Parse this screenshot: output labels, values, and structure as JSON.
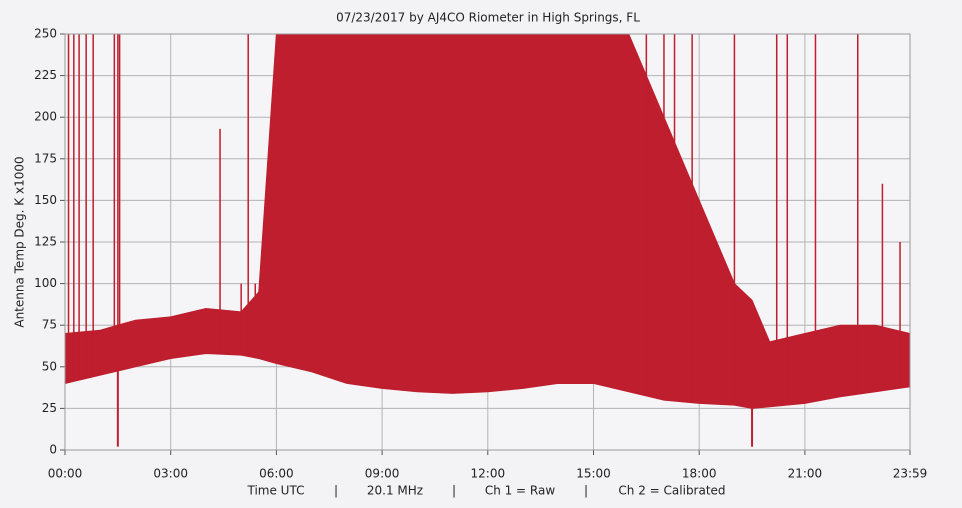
{
  "chart_data": {
    "type": "band",
    "title": "07/23/2017  by  AJ4CO Riometer  in  High Springs, FL",
    "y_label": "Antenna Temp Deg. K x1000",
    "footer": [
      "Time UTC",
      "|",
      "20.1 MHz",
      "|",
      "Ch 1 = Raw",
      "|",
      "Ch 2 = Calibrated"
    ],
    "color": "#be1e2d",
    "grid": true,
    "x": [
      0,
      1,
      2,
      3,
      4,
      5,
      5.5,
      6,
      7,
      8,
      9,
      10,
      11,
      12,
      13,
      14,
      15,
      16,
      17,
      18,
      19,
      19.5,
      20,
      21,
      22,
      23,
      23.98
    ],
    "low": [
      40,
      45,
      50,
      55,
      58,
      57,
      55,
      52,
      47,
      40,
      37,
      35,
      34,
      35,
      37,
      40,
      40,
      35,
      30,
      28,
      27,
      25,
      26,
      28,
      32,
      35,
      38
    ],
    "high": [
      70,
      72,
      78,
      80,
      85,
      83,
      95,
      250,
      250,
      250,
      250,
      250,
      250,
      250,
      250,
      250,
      250,
      250,
      200,
      150,
      100,
      90,
      65,
      70,
      75,
      75,
      70
    ],
    "spikes": {
      "x": [
        0.1,
        0.25,
        0.4,
        0.6,
        0.8,
        1.4,
        1.5,
        1.55,
        4.4,
        5.0,
        5.2,
        5.4,
        16.5,
        17.0,
        17.3,
        17.8,
        19.0,
        20.2,
        20.5,
        21.3,
        22.5,
        23.2,
        23.7
      ],
      "values": [
        250,
        250,
        250,
        250,
        250,
        250,
        250,
        250,
        193,
        100,
        250,
        100,
        250,
        250,
        250,
        250,
        250,
        250,
        250,
        250,
        250,
        160,
        125
      ]
    },
    "dips": {
      "x": [
        1.5,
        19.5
      ],
      "values": [
        2,
        2
      ]
    },
    "xlim": [
      0,
      23.983
    ],
    "xticks": [
      {
        "value": 0,
        "label": "00:00"
      },
      {
        "value": 3,
        "label": "03:00"
      },
      {
        "value": 6,
        "label": "06:00"
      },
      {
        "value": 9,
        "label": "09:00"
      },
      {
        "value": 12,
        "label": "12:00"
      },
      {
        "value": 15,
        "label": "15:00"
      },
      {
        "value": 18,
        "label": "18:00"
      },
      {
        "value": 21,
        "label": "21:00"
      },
      {
        "value": 23.983,
        "label": "23:59"
      }
    ],
    "ylim": [
      0,
      250
    ],
    "yticks": [
      0,
      25,
      50,
      75,
      100,
      125,
      150,
      175,
      200,
      225,
      250
    ]
  }
}
